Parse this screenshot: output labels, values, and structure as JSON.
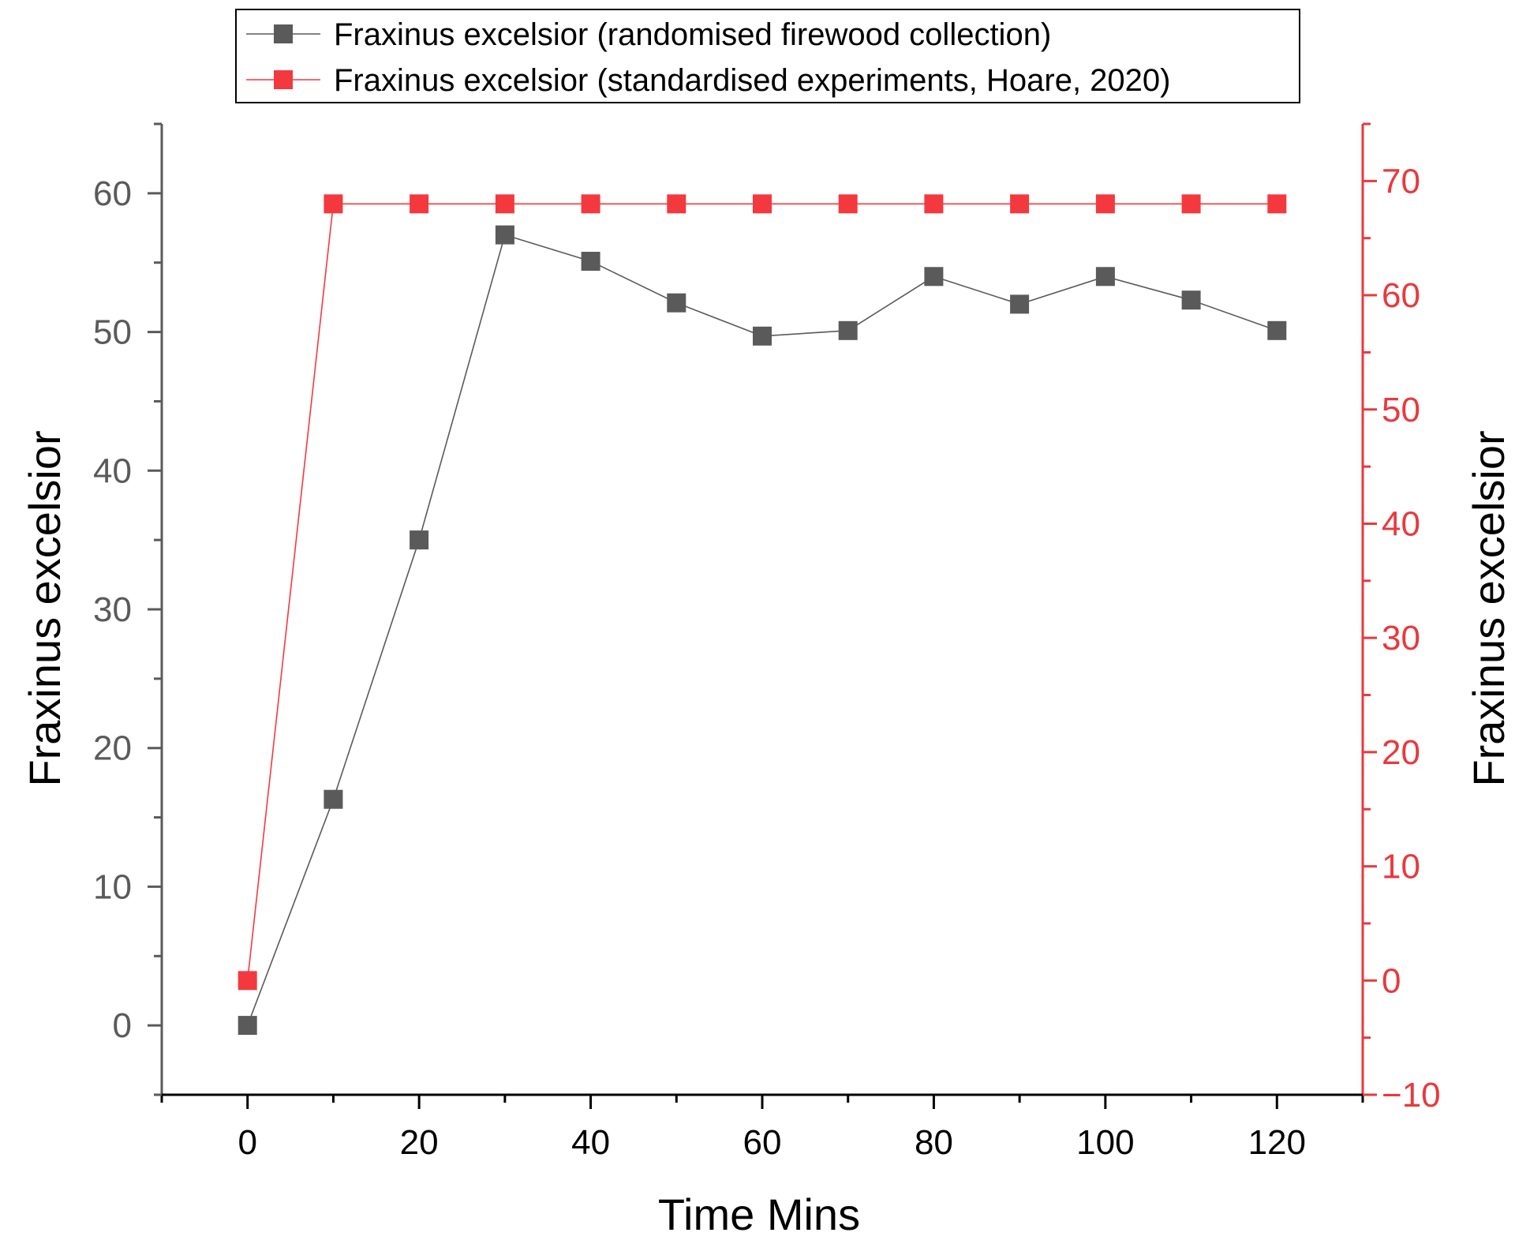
{
  "chart_data": {
    "type": "line",
    "xlabel": "Time Mins",
    "ylabel_left": "Fraxinus excelsior",
    "ylabel_right": "Fraxinus excelsior",
    "xlim": [
      -10,
      130
    ],
    "ylim_left": [
      -5,
      65
    ],
    "ylim_right": [
      -10,
      75
    ],
    "x_ticks": [
      0,
      20,
      40,
      60,
      80,
      100,
      120
    ],
    "y_left_ticks": [
      0,
      10,
      20,
      30,
      40,
      50,
      60
    ],
    "y_right_ticks": [
      -10,
      0,
      10,
      20,
      30,
      40,
      50,
      60,
      70
    ],
    "x_tick_labels": [
      "0",
      "20",
      "40",
      "60",
      "80",
      "100",
      "120"
    ],
    "y_left_tick_labels": [
      "0",
      "10",
      "20",
      "30",
      "40",
      "50",
      "60"
    ],
    "y_right_tick_labels": [
      "−10",
      "0",
      "10",
      "20",
      "30",
      "40",
      "50",
      "60",
      "70"
    ],
    "grid": false,
    "legend_position": "top",
    "series": [
      {
        "name": "Fraxinus excelsior (randomised firewood collection)",
        "axis": "left",
        "color": "#5a5a5a",
        "marker": "square",
        "x": [
          0,
          10,
          20,
          30,
          40,
          50,
          60,
          70,
          80,
          90,
          100,
          110,
          120
        ],
        "y": [
          0,
          16.3,
          35,
          57,
          55.1,
          52.1,
          49.7,
          50.1,
          54,
          52,
          54,
          52.3,
          50.1
        ]
      },
      {
        "name": "Fraxinus excelsior (standardised experiments, Hoare, 2020)",
        "axis": "right",
        "color": "#f4393e",
        "marker": "square",
        "x": [
          0,
          10,
          20,
          30,
          40,
          50,
          60,
          70,
          80,
          90,
          100,
          110,
          120
        ],
        "y": [
          0,
          68,
          68,
          68,
          68,
          68,
          68,
          68,
          68,
          68,
          68,
          68,
          68
        ]
      }
    ]
  }
}
